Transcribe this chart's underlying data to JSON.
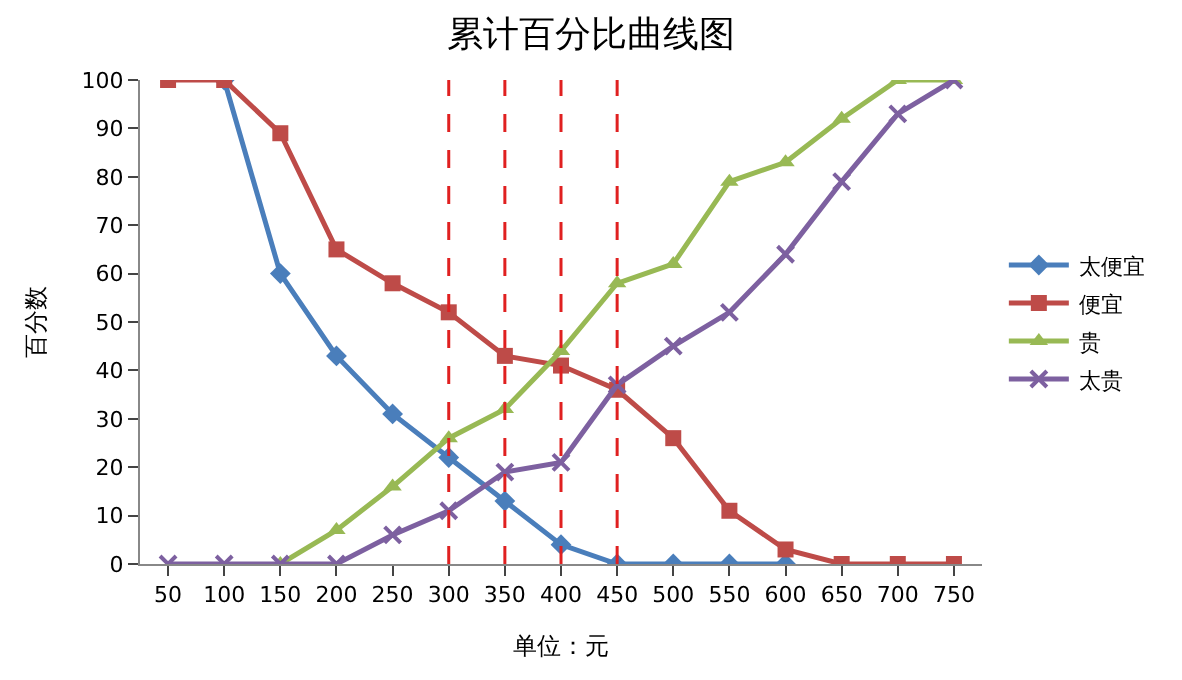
{
  "chart_data": {
    "type": "line",
    "title": "累计百分比曲线图",
    "xlabel": "单位：元",
    "ylabel": "百分数",
    "categories": [
      "50",
      "100",
      "150",
      "200",
      "250",
      "300",
      "350",
      "400",
      "450",
      "500",
      "550",
      "600",
      "650",
      "700",
      "750"
    ],
    "series": [
      {
        "name": "太便宜",
        "color": "#4a7ebb",
        "marker": "diamond",
        "values": [
          null,
          100,
          60,
          43,
          31,
          22,
          13,
          4,
          0,
          0,
          0,
          0,
          null,
          null,
          null
        ]
      },
      {
        "name": "便宜",
        "color": "#be4b48",
        "marker": "square",
        "values": [
          100,
          100,
          89,
          65,
          58,
          52,
          43,
          41,
          36,
          26,
          11,
          3,
          0,
          0,
          0
        ]
      },
      {
        "name": "贵",
        "color": "#98b954",
        "marker": "triangle",
        "values": [
          null,
          null,
          0,
          7,
          16,
          26,
          32,
          44,
          58,
          62,
          79,
          83,
          92,
          100,
          100
        ]
      },
      {
        "name": "太贵",
        "color": "#7d60a0",
        "marker": "cross",
        "values": [
          0,
          0,
          0,
          0,
          6,
          11,
          19,
          21,
          37,
          45,
          52,
          64,
          79,
          93,
          100
        ]
      }
    ],
    "ref_lines": [
      {
        "axis": "x",
        "value": "300",
        "color": "#e02020",
        "line_style": "dashed"
      },
      {
        "axis": "x",
        "value": "350",
        "color": "#e02020",
        "line_style": "dashed"
      },
      {
        "axis": "x",
        "value": "400",
        "color": "#e02020",
        "line_style": "dashed"
      },
      {
        "axis": "x",
        "value": "450",
        "color": "#e02020",
        "line_style": "dashed"
      }
    ],
    "ylim": [
      0,
      100
    ],
    "yticks": [
      0,
      10,
      20,
      30,
      40,
      50,
      60,
      70,
      80,
      90,
      100
    ],
    "legend": "right",
    "line_style": "solid"
  }
}
